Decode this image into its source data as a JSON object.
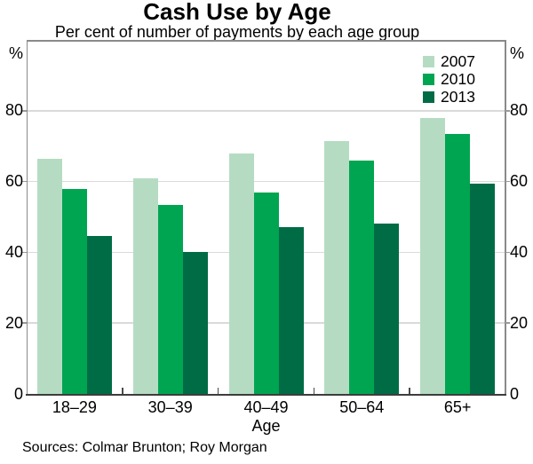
{
  "chart_data": {
    "type": "bar",
    "title": "Cash Use by Age",
    "subtitle": "Per cent of number of payments by each age group",
    "categories": [
      "18–29",
      "30–39",
      "40–49",
      "50–64",
      "65+"
    ],
    "series": [
      {
        "name": "2007",
        "color": "#b5dcc2",
        "values": [
          66.5,
          61,
          68,
          71.5,
          78
        ]
      },
      {
        "name": "2010",
        "color": "#00a552",
        "values": [
          58,
          53.5,
          57,
          66,
          73.5
        ]
      },
      {
        "name": "2013",
        "color": "#006c45",
        "values": [
          44.5,
          40,
          47,
          48,
          59.5
        ]
      }
    ],
    "xlabel": "Age",
    "ylabel_left": "%",
    "ylabel_right": "%",
    "ylim": [
      0,
      100
    ],
    "yticks": [
      0,
      20,
      40,
      60,
      80
    ],
    "grid": true,
    "legend_position": "top-right"
  },
  "footer": {
    "source": "Sources: Colmar Brunton; Roy Morgan"
  }
}
